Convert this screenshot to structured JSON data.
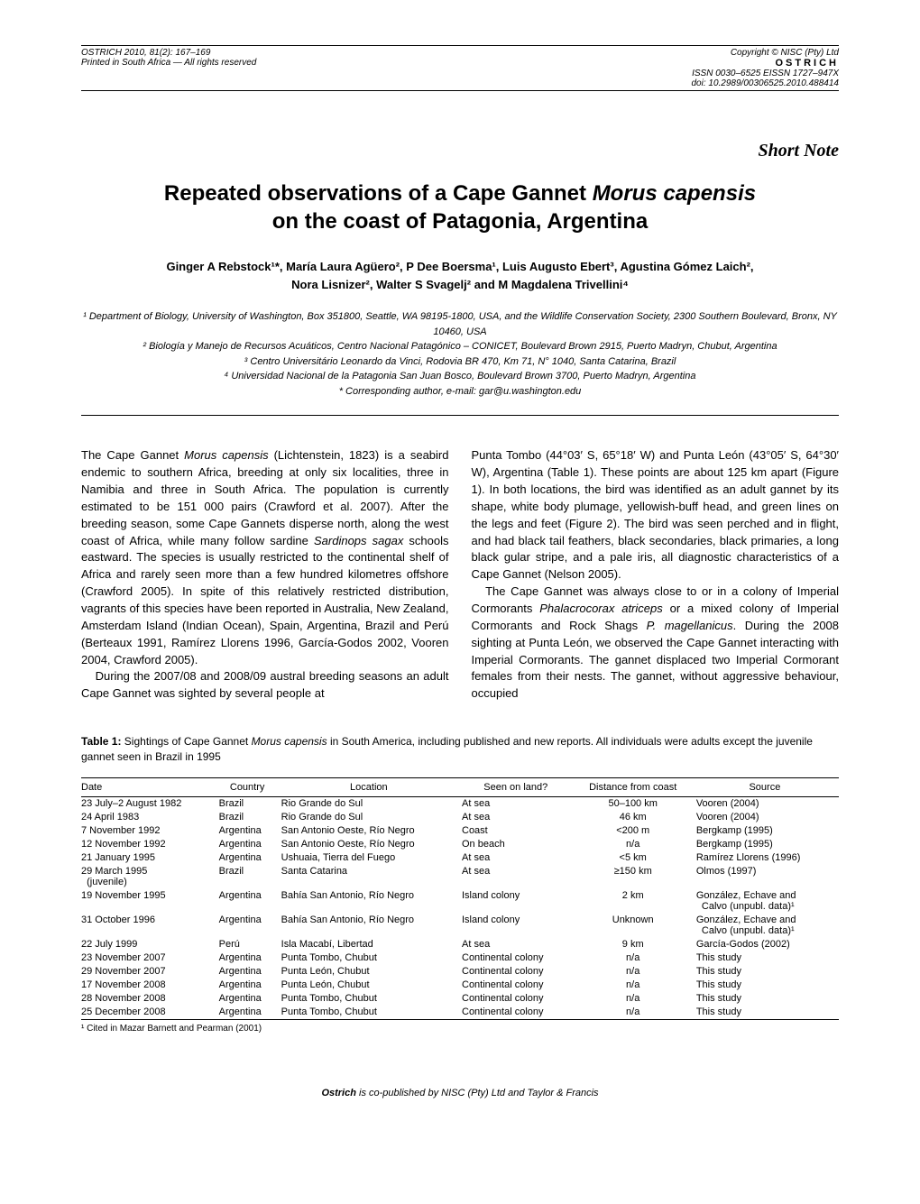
{
  "header": {
    "left_line1": "OSTRICH 2010, 81(2): 167–169",
    "left_line2": "Printed in South Africa — All rights reserved",
    "copyright": "Copyright © NISC (Pty) Ltd",
    "journal": "OSTRICH",
    "issn": "ISSN 0030–6525 EISSN 1727–947X",
    "doi": "doi: 10.2989/00306525.2010.488414"
  },
  "short_note": "Short Note",
  "title_line1": "Repeated observations of a Cape Gannet Morus capensis",
  "title_line2": "on the coast of Patagonia, Argentina",
  "authors_line1": "Ginger A Rebstock¹*, María Laura Agüero², P Dee Boersma¹, Luis Augusto Ebert³, Agustina Gómez Laich²,",
  "authors_line2": "Nora Lisnizer², Walter S Svagelj² and M Magdalena Trivellini⁴",
  "affiliations": [
    "¹ Department of Biology, University of Washington, Box 351800, Seattle, WA 98195-1800, USA, and the Wildlife Conservation Society, 2300 Southern Boulevard, Bronx, NY 10460, USA",
    "² Biología y Manejo de Recursos Acuáticos, Centro Nacional Patagónico – CONICET, Boulevard Brown 2915, Puerto Madryn, Chubut, Argentina",
    "³ Centro Universitário Leonardo da Vinci, Rodovia BR 470, Km 71, N° 1040, Santa Catarina, Brazil",
    "⁴ Universidad Nacional de la Patagonia San Juan Bosco, Boulevard Brown 3700, Puerto Madryn, Argentina",
    "* Corresponding author, e-mail: gar@u.washington.edu"
  ],
  "body": {
    "col1_p1": "The Cape Gannet Morus capensis (Lichtenstein, 1823) is a seabird endemic to southern Africa, breeding at only six localities, three in Namibia and three in South Africa. The population is currently estimated to be 151 000 pairs (Crawford et al. 2007). After the breeding season, some Cape Gannets disperse north, along the west coast of Africa, while many follow sardine Sardinops sagax schools eastward. The species is usually restricted to the continental shelf of Africa and rarely seen more than a few hundred kilometres offshore (Crawford 2005). In spite of this relatively restricted distribution, vagrants of this species have been reported in Australia, New Zealand, Amsterdam Island (Indian Ocean), Spain, Argentina, Brazil and Perú (Berteaux 1991, Ramírez Llorens 1996, García-Godos 2002, Vooren 2004, Crawford 2005).",
    "col1_p2": "During the 2007/08 and 2008/09 austral breeding seasons an adult Cape Gannet was sighted by several people at",
    "col2_p1": "Punta Tombo (44°03′ S, 65°18′ W) and Punta León (43°05′ S, 64°30′ W), Argentina (Table 1). These points are about 125 km apart (Figure 1). In both locations, the bird was identified as an adult gannet by its shape, white body plumage, yellowish-buff head, and green lines on the legs and feet (Figure 2). The bird was seen perched and in flight, and had black tail feathers, black secondaries, black primaries, a long black gular stripe, and a pale iris, all diagnostic characteristics of a Cape Gannet (Nelson 2005).",
    "col2_p2": "The Cape Gannet was always close to or in a colony of Imperial Cormorants Phalacrocorax atriceps or a mixed colony of Imperial Cormorants and Rock Shags P. magellanicus. During the 2008 sighting at Punta León, we observed the Cape Gannet interacting with Imperial Cormorants. The gannet displaced two Imperial Cormorant females from their nests. The gannet, without aggressive behaviour, occupied"
  },
  "table": {
    "caption_bold": "Table 1:",
    "caption_text": " Sightings of Cape Gannet Morus capensis in South America, including published and new reports. All individuals were adults except the juvenile gannet seen in Brazil in 1995",
    "columns": [
      "Date",
      "Country",
      "Location",
      "Seen on land?",
      "Distance from coast",
      "Source"
    ],
    "rows": [
      [
        "23 July–2 August 1982",
        "Brazil",
        "Rio Grande do Sul",
        "At sea",
        "50–100 km",
        "Vooren (2004)"
      ],
      [
        "24 April 1983",
        "Brazil",
        "Rio Grande do Sul",
        "At sea",
        "46 km",
        "Vooren (2004)"
      ],
      [
        "7 November 1992",
        "Argentina",
        "San Antonio Oeste, Río Negro",
        "Coast",
        "<200 m",
        "Bergkamp (1995)"
      ],
      [
        "12 November 1992",
        "Argentina",
        "San Antonio Oeste, Río Negro",
        "On beach",
        "n/a",
        "Bergkamp (1995)"
      ],
      [
        "21 January 1995",
        "Argentina",
        "Ushuaia, Tierra del Fuego",
        "At sea",
        "<5 km",
        "Ramírez Llorens (1996)"
      ],
      [
        "29 March 1995 (juvenile)",
        "Brazil",
        "Santa Catarina",
        "At sea",
        "≥150 km",
        "Olmos (1997)"
      ],
      [
        "19 November 1995",
        "Argentina",
        "Bahía San Antonio, Río Negro",
        "Island colony",
        "2 km",
        "González, Echave and Calvo (unpubl. data)¹"
      ],
      [
        "31 October 1996",
        "Argentina",
        "Bahía San Antonio, Río Negro",
        "Island colony",
        "Unknown",
        "González, Echave and Calvo (unpubl. data)¹"
      ],
      [
        "22 July 1999",
        "Perú",
        "Isla Macabí, Libertad",
        "At sea",
        "9 km",
        "García-Godos (2002)"
      ],
      [
        "23 November 2007",
        "Argentina",
        "Punta Tombo, Chubut",
        "Continental colony",
        "n/a",
        "This study"
      ],
      [
        "29 November 2007",
        "Argentina",
        "Punta León, Chubut",
        "Continental colony",
        "n/a",
        "This study"
      ],
      [
        "17 November 2008",
        "Argentina",
        "Punta León, Chubut",
        "Continental colony",
        "n/a",
        "This study"
      ],
      [
        "28 November 2008",
        "Argentina",
        "Punta Tombo, Chubut",
        "Continental colony",
        "n/a",
        "This study"
      ],
      [
        "25 December 2008",
        "Argentina",
        "Punta Tombo, Chubut",
        "Continental colony",
        "n/a",
        "This study"
      ]
    ],
    "footnote": "¹ Cited in Mazar Barnett and Pearman (2001)"
  },
  "footer": "Ostrich is co-published by NISC (Pty) Ltd and Taylor & Francis"
}
